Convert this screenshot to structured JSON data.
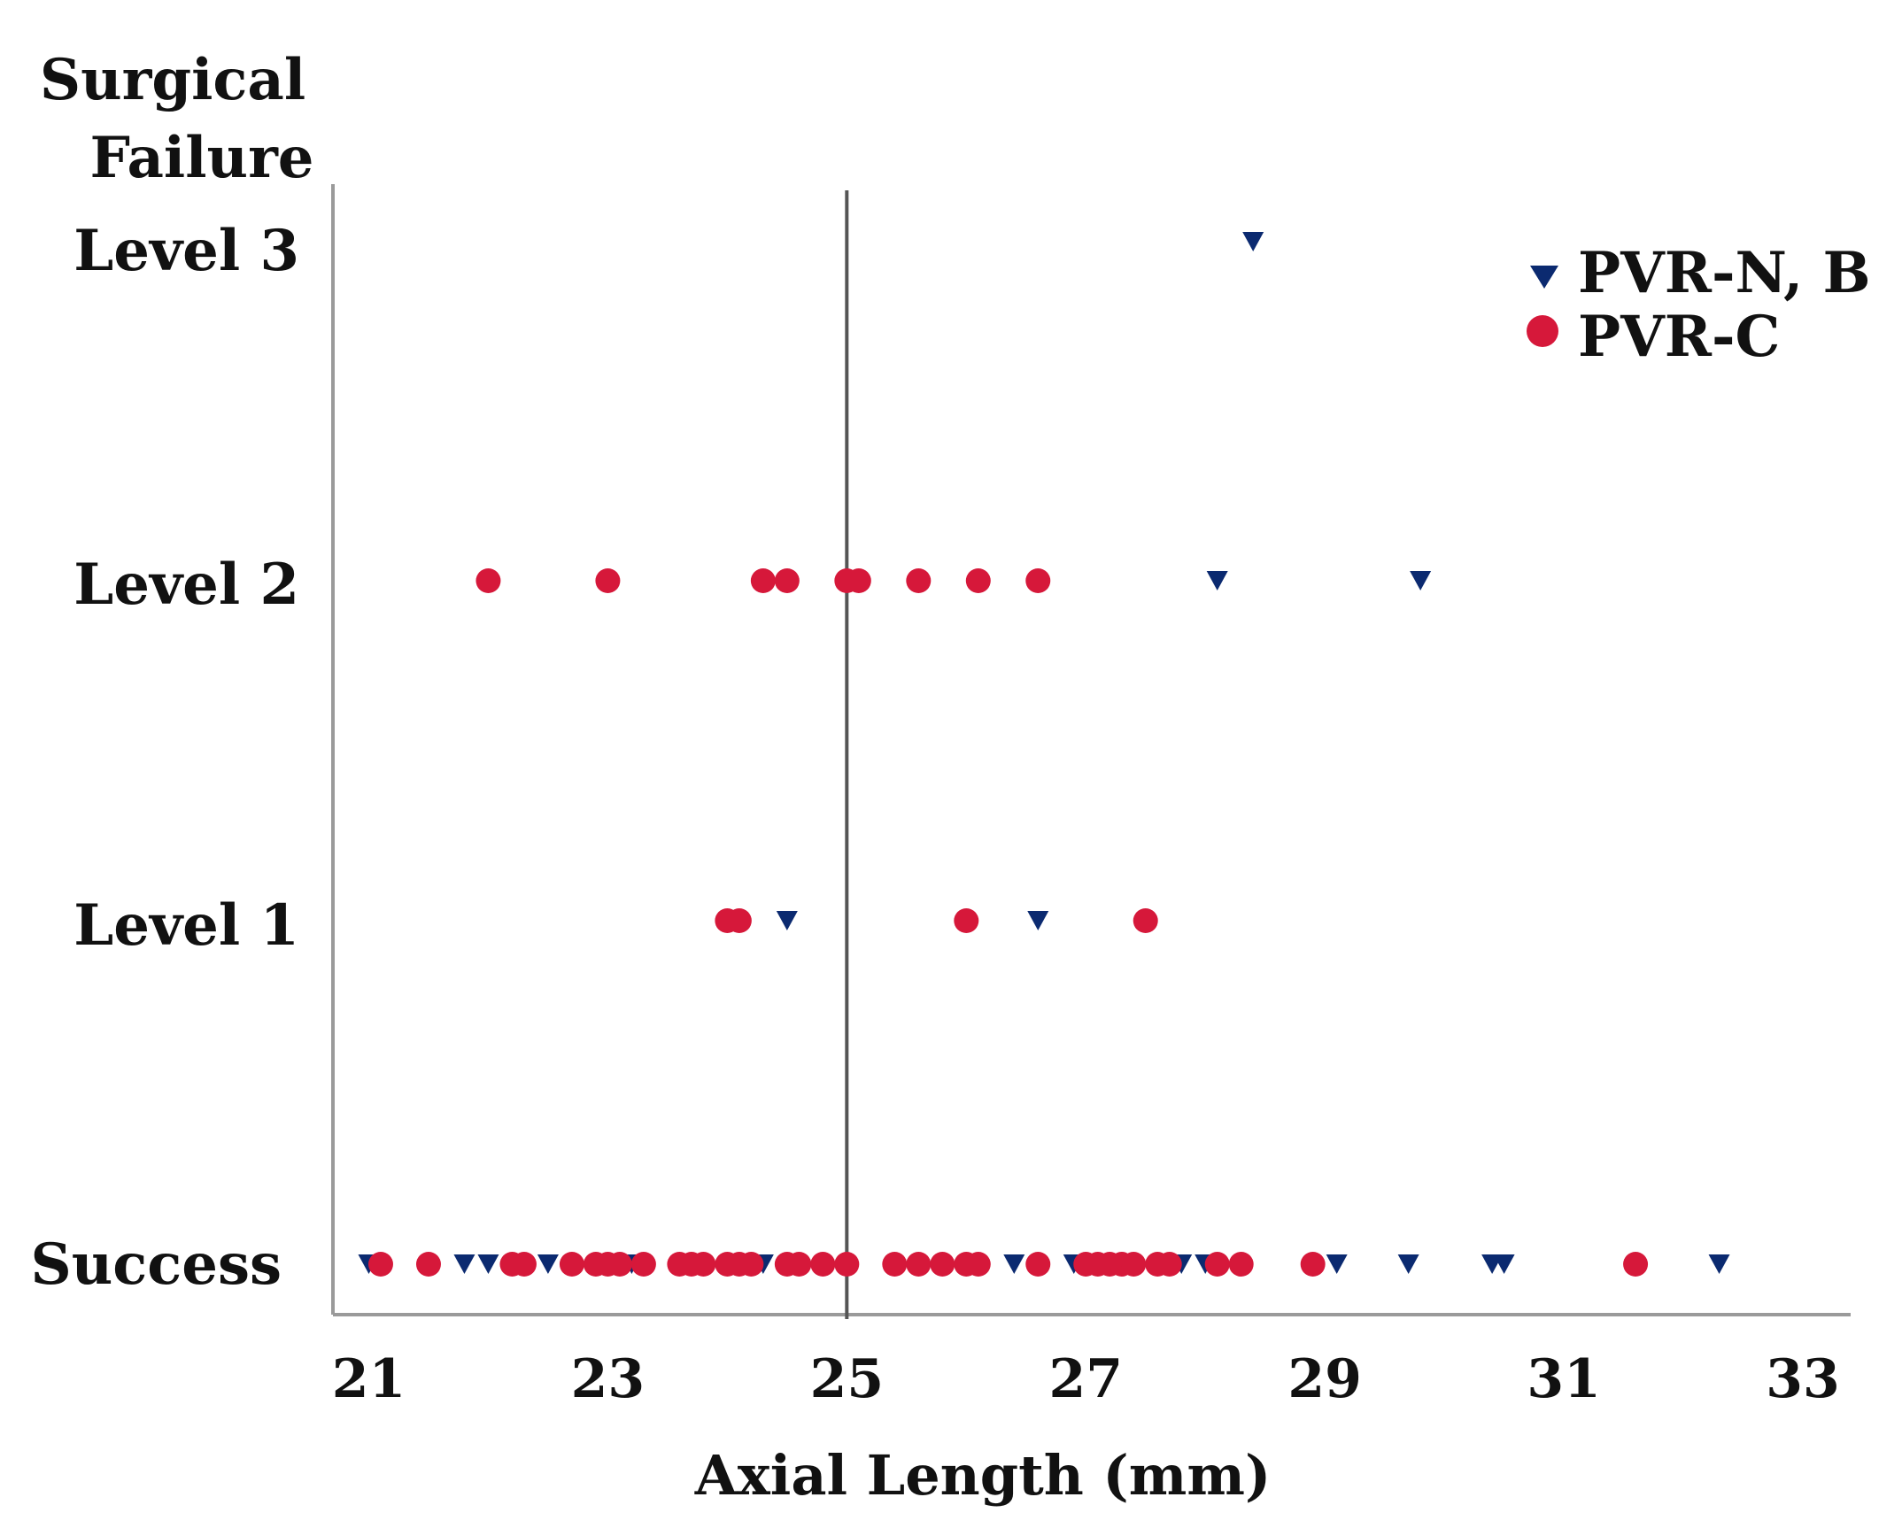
{
  "chart_data": {
    "type": "scatter",
    "title": "",
    "ylabel": [
      "Surgical",
      "Failure"
    ],
    "xlabel": "Axial Length (mm)",
    "xlim": [
      20.7,
      33.4
    ],
    "xticks": [
      21,
      23,
      25,
      27,
      29,
      31,
      33
    ],
    "ycategories": [
      "Success",
      "Level 1",
      "Level 2",
      "Level 3"
    ],
    "reference_line_x": 25.0,
    "grid": false,
    "legend_position": "top-right",
    "colors": {
      "pvr_nb": "#0b2a70",
      "pvr_c": "#d6183a",
      "axis": "#999999",
      "refline": "#555555"
    },
    "series": [
      {
        "name": "PVR-N, B",
        "marker": "triangle-down",
        "points": [
          {
            "x": 21.0,
            "y": "Success"
          },
          {
            "x": 21.8,
            "y": "Success"
          },
          {
            "x": 22.0,
            "y": "Success"
          },
          {
            "x": 22.5,
            "y": "Success"
          },
          {
            "x": 23.2,
            "y": "Success"
          },
          {
            "x": 24.3,
            "y": "Success"
          },
          {
            "x": 26.4,
            "y": "Success"
          },
          {
            "x": 26.9,
            "y": "Success"
          },
          {
            "x": 27.8,
            "y": "Success"
          },
          {
            "x": 28.0,
            "y": "Success"
          },
          {
            "x": 29.1,
            "y": "Success"
          },
          {
            "x": 29.7,
            "y": "Success"
          },
          {
            "x": 30.4,
            "y": "Success"
          },
          {
            "x": 30.5,
            "y": "Success"
          },
          {
            "x": 32.3,
            "y": "Success"
          },
          {
            "x": 24.5,
            "y": "Level 1"
          },
          {
            "x": 26.6,
            "y": "Level 1"
          },
          {
            "x": 28.1,
            "y": "Level 2"
          },
          {
            "x": 29.8,
            "y": "Level 2"
          },
          {
            "x": 28.4,
            "y": "Level 3"
          }
        ]
      },
      {
        "name": "PVR-C",
        "marker": "circle",
        "points": [
          {
            "x": 21.1,
            "y": "Success"
          },
          {
            "x": 21.5,
            "y": "Success"
          },
          {
            "x": 22.2,
            "y": "Success"
          },
          {
            "x": 22.3,
            "y": "Success"
          },
          {
            "x": 22.7,
            "y": "Success"
          },
          {
            "x": 22.9,
            "y": "Success"
          },
          {
            "x": 23.0,
            "y": "Success"
          },
          {
            "x": 23.1,
            "y": "Success"
          },
          {
            "x": 23.3,
            "y": "Success"
          },
          {
            "x": 23.6,
            "y": "Success"
          },
          {
            "x": 23.7,
            "y": "Success"
          },
          {
            "x": 23.8,
            "y": "Success"
          },
          {
            "x": 24.0,
            "y": "Success"
          },
          {
            "x": 24.1,
            "y": "Success"
          },
          {
            "x": 24.2,
            "y": "Success"
          },
          {
            "x": 24.5,
            "y": "Success"
          },
          {
            "x": 24.6,
            "y": "Success"
          },
          {
            "x": 24.8,
            "y": "Success"
          },
          {
            "x": 25.0,
            "y": "Success"
          },
          {
            "x": 25.4,
            "y": "Success"
          },
          {
            "x": 25.6,
            "y": "Success"
          },
          {
            "x": 25.8,
            "y": "Success"
          },
          {
            "x": 26.0,
            "y": "Success"
          },
          {
            "x": 26.1,
            "y": "Success"
          },
          {
            "x": 26.6,
            "y": "Success"
          },
          {
            "x": 27.0,
            "y": "Success"
          },
          {
            "x": 27.1,
            "y": "Success"
          },
          {
            "x": 27.2,
            "y": "Success"
          },
          {
            "x": 27.3,
            "y": "Success"
          },
          {
            "x": 27.4,
            "y": "Success"
          },
          {
            "x": 27.6,
            "y": "Success"
          },
          {
            "x": 27.7,
            "y": "Success"
          },
          {
            "x": 28.1,
            "y": "Success"
          },
          {
            "x": 28.3,
            "y": "Success"
          },
          {
            "x": 28.9,
            "y": "Success"
          },
          {
            "x": 31.6,
            "y": "Success"
          },
          {
            "x": 24.0,
            "y": "Level 1"
          },
          {
            "x": 24.1,
            "y": "Level 1"
          },
          {
            "x": 26.0,
            "y": "Level 1"
          },
          {
            "x": 27.5,
            "y": "Level 1"
          },
          {
            "x": 22.0,
            "y": "Level 2"
          },
          {
            "x": 23.0,
            "y": "Level 2"
          },
          {
            "x": 24.3,
            "y": "Level 2"
          },
          {
            "x": 24.5,
            "y": "Level 2"
          },
          {
            "x": 25.0,
            "y": "Level 2"
          },
          {
            "x": 25.1,
            "y": "Level 2"
          },
          {
            "x": 25.6,
            "y": "Level 2"
          },
          {
            "x": 26.1,
            "y": "Level 2"
          },
          {
            "x": 26.6,
            "y": "Level 2"
          }
        ]
      }
    ]
  }
}
